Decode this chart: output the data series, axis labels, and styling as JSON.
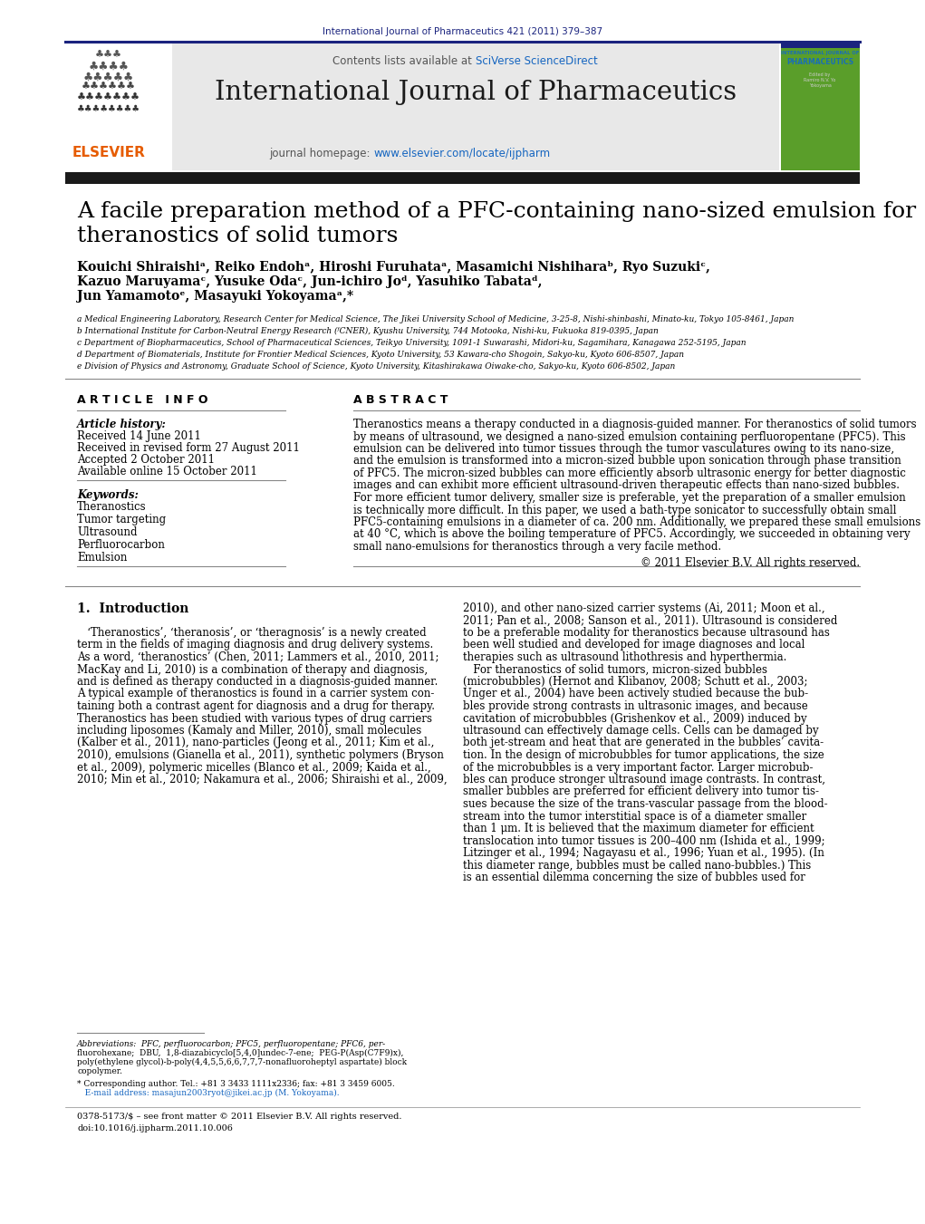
{
  "bg_color": "#ffffff",
  "top_journal_ref": "International Journal of Pharmaceutics 421 (2011) 379–387",
  "top_journal_ref_color": "#1a237e",
  "header_bg": "#e8e8e8",
  "header_sciverse_color": "#1565c0",
  "header_url_color": "#1565c0",
  "black_bar_color": "#1a1a1a",
  "title_line1": "A facile preparation method of a PFC-containing nano-sized emulsion for",
  "title_line2": "theranostics of solid tumors",
  "authors_line1": "Kouichi Shiraishiᵃ, Reiko Endohᵃ, Hiroshi Furuhataᵃ, Masamichi Nishiharaᵇ, Ryo Suzukiᶜ,",
  "authors_line2": "Kazuo Maruyamaᶜ, Yusuke Odaᶜ, Jun-ichiro Joᵈ, Yasuhiko Tabataᵈ,",
  "authors_line3": "Jun Yamamotoᵉ, Masayuki Yokoyamaᵃ,*",
  "affil_a": "a Medical Engineering Laboratory, Research Center for Medical Science, The Jikei University School of Medicine, 3-25-8, Nishi-shinbashi, Minato-ku, Tokyo 105-8461, Japan",
  "affil_b": "b International Institute for Carbon-Neutral Energy Research (ᶠCNER), Kyushu University, 744 Motooka, Nishi-ku, Fukuoka 819-0395, Japan",
  "affil_c": "c Department of Biopharmaceutics, School of Pharmaceutical Sciences, Teikyo University, 1091-1 Suwarashi, Midori-ku, Sagamihara, Kanagawa 252-5195, Japan",
  "affil_d": "d Department of Biomaterials, Institute for Frontier Medical Sciences, Kyoto University, 53 Kawara-cho Shogoin, Sakyo-ku, Kyoto 606-8507, Japan",
  "affil_e": "e Division of Physics and Astronomy, Graduate School of Science, Kyoto University, Kitashirakawa Oiwake-cho, Sakyo-ku, Kyoto 606-8502, Japan",
  "article_info_header": "A R T I C L E   I N F O",
  "history_label": "Article history:",
  "received1": "Received 14 June 2011",
  "received2": "Received in revised form 27 August 2011",
  "accepted": "Accepted 2 October 2011",
  "available": "Available online 15 October 2011",
  "keywords_label": "Keywords:",
  "keywords": [
    "Theranostics",
    "Tumor targeting",
    "Ultrasound",
    "Perfluorocarbon",
    "Emulsion"
  ],
  "abstract_header": "A B S T R A C T",
  "abstract_text": "Theranostics means a therapy conducted in a diagnosis-guided manner. For theranostics of solid tumors by means of ultrasound, we designed a nano-sized emulsion containing perfluoropentane (PFC5). This emulsion can be delivered into tumor tissues through the tumor vasculatures owing to its nano-size, and the emulsion is transformed into a micron-sized bubble upon sonication through phase transition of PFC5. The micron-sized bubbles can more efficiently absorb ultrasonic energy for better diagnostic images and can exhibit more efficient ultrasound-driven therapeutic effects than nano-sized bubbles. For more efficient tumor delivery, smaller size is preferable, yet the preparation of a smaller emulsion is technically more difficult. In this paper, we used a bath-type sonicator to successfully obtain small PFC5-containing emulsions in a diameter of ca. 200 nm. Additionally, we prepared these small emulsions at 40 °C, which is above the boiling temperature of PFC5. Accordingly, we succeeded in obtaining very small nano-emulsions for theranostics through a very facile method.",
  "copyright": "© 2011 Elsevier B.V. All rights reserved.",
  "intro_header": "1.  Introduction",
  "intro_col1_lines": [
    "   ‘Theranostics’, ‘theranosis’, or ‘theragnosis’ is a newly created",
    "term in the fields of imaging diagnosis and drug delivery systems.",
    "As a word, ‘theranostics’ (Chen, 2011; Lammers et al., 2010, 2011;",
    "MacKay and Li, 2010) is a combination of therapy and diagnosis,",
    "and is defined as therapy conducted in a diagnosis-guided manner.",
    "A typical example of theranostics is found in a carrier system con-",
    "taining both a contrast agent for diagnosis and a drug for therapy.",
    "Theranostics has been studied with various types of drug carriers",
    "including liposomes (Kamaly and Miller, 2010), small molecules",
    "(Kalber et al., 2011), nano-particles (Jeong et al., 2011; Kim et al.,",
    "2010), emulsions (Gianella et al., 2011), synthetic polymers (Bryson",
    "et al., 2009), polymeric micelles (Blanco et al., 2009; Kaida et al.,",
    "2010; Min et al., 2010; Nakamura et al., 2006; Shiraishi et al., 2009,"
  ],
  "intro_col2_lines": [
    "2010), and other nano-sized carrier systems (Ai, 2011; Moon et al.,",
    "2011; Pan et al., 2008; Sanson et al., 2011). Ultrasound is considered",
    "to be a preferable modality for theranostics because ultrasound has",
    "been well studied and developed for image diagnoses and local",
    "therapies such as ultrasound lithothresis and hyperthermia.",
    "   For theranostics of solid tumors, micron-sized bubbles",
    "(microbubbles) (Hernot and Klibanov, 2008; Schutt et al., 2003;",
    "Unger et al., 2004) have been actively studied because the bub-",
    "bles provide strong contrasts in ultrasonic images, and because",
    "cavitation of microbubbles (Grishenkov et al., 2009) induced by",
    "ultrasound can effectively damage cells. Cells can be damaged by",
    "both jet-stream and heat that are generated in the bubbles’ cavita-",
    "tion. In the design of microbubbles for tumor applications, the size",
    "of the microbubbles is a very important factor. Larger microbub-",
    "bles can produce stronger ultrasound image contrasts. In contrast,",
    "smaller bubbles are preferred for efficient delivery into tumor tis-",
    "sues because the size of the trans-vascular passage from the blood-",
    "stream into the tumor interstitial space is of a diameter smaller",
    "than 1 μm. It is believed that the maximum diameter for efficient",
    "translocation into tumor tissues is 200–400 nm (Ishida et al., 1999;",
    "Litzinger et al., 1994; Nagayasu et al., 1996; Yuan et al., 1995). (In",
    "this diameter range, bubbles must be called nano-bubbles.) This",
    "is an essential dilemma concerning the size of bubbles used for"
  ],
  "footnote_abbrev": "Abbreviations:  PFC, perfluorocarbon; PFC5, perfluoropentane; PFC6, per-",
  "footnote_abbrev2": "fluorohexane;  DBU,  1,8-diazabicyclo[5,4,0]undec-7-ene;  PEG-P(Asp(C7F9)x),",
  "footnote_abbrev3": "poly(ethylene glycol)-b-poly(4,4,5,5,6,6,7,7,7-nonafluoroheptyl aspartate) block",
  "footnote_abbrev4": "copolymer.",
  "footnote_corresponding": "* Corresponding author. Tel.: +81 3 3433 1111x2336; fax: +81 3 3459 6005.",
  "footnote_email": "   E-mail address: masajun2003ryot@jikei.ac.jp (M. Yokoyama).",
  "footnote_bottom1": "0378-5173/$ – see front matter © 2011 Elsevier B.V. All rights reserved.",
  "footnote_bottom2": "doi:10.1016/j.ijpharm.2011.10.006"
}
